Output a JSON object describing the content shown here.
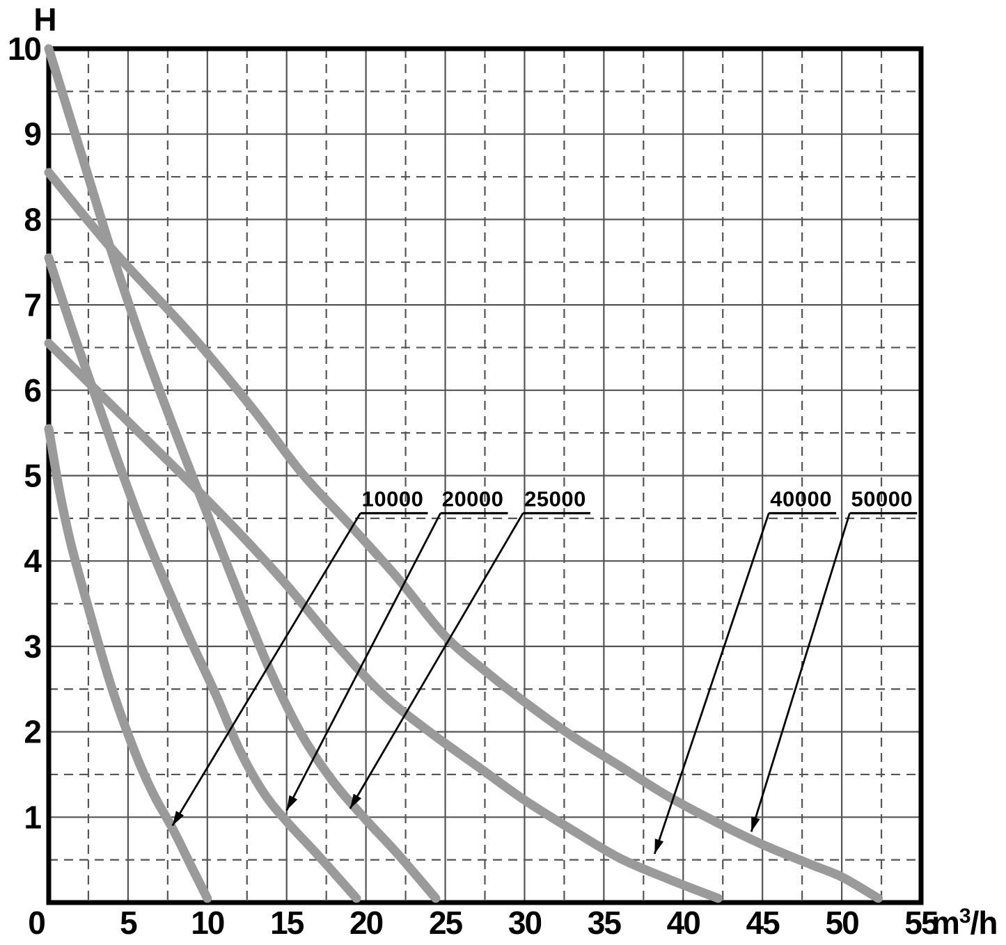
{
  "chart_data": {
    "type": "line",
    "title": "",
    "legend_position": "inline-labels-with-leader-arrows",
    "grid": "solid major, dashed minor",
    "y_axis": {
      "label": "H",
      "range": [
        0,
        10
      ],
      "ticks": [
        10,
        9,
        8,
        7,
        6,
        5,
        4,
        3,
        2,
        1
      ],
      "major_step": 1,
      "minor_step": 0.5
    },
    "x_axis": {
      "unit": "m³/h",
      "range": [
        0,
        55
      ],
      "ticks": [
        0,
        5,
        10,
        15,
        20,
        25,
        30,
        35,
        40,
        45,
        50,
        55
      ],
      "major_step": 5,
      "minor_step": 2.5
    },
    "series": [
      {
        "name": "10000",
        "max_head_m": 5.5,
        "max_flow_m3h": 10,
        "points": [
          [
            0,
            5.55
          ],
          [
            0.7,
            4.8
          ],
          [
            1.4,
            4.2
          ],
          [
            2.5,
            3.45
          ],
          [
            4,
            2.5
          ],
          [
            5.5,
            1.73
          ],
          [
            6.6,
            1.27
          ],
          [
            7.8,
            0.87
          ],
          [
            9,
            0.42
          ],
          [
            10,
            0.05
          ]
        ],
        "label_anchor_q": 19.65,
        "arrow_tip": [
          7.8,
          0.9
        ]
      },
      {
        "name": "20000",
        "max_head_m": 7.5,
        "max_flow_m3h": 19.4,
        "points": [
          [
            0,
            7.55
          ],
          [
            1.5,
            6.7
          ],
          [
            3,
            5.9
          ],
          [
            4.5,
            5.1
          ],
          [
            6,
            4.35
          ],
          [
            7.5,
            3.68
          ],
          [
            9,
            3.05
          ],
          [
            10.5,
            2.45
          ],
          [
            12,
            1.8
          ],
          [
            13.5,
            1.3
          ],
          [
            15,
            0.95
          ],
          [
            17,
            0.55
          ],
          [
            19.4,
            0.05
          ]
        ],
        "label_anchor_q": 24.7,
        "arrow_tip": [
          15.0,
          1.08
        ]
      },
      {
        "name": "25000",
        "max_head_m": 10,
        "max_flow_m3h": 24.4,
        "points": [
          [
            0,
            10
          ],
          [
            2,
            8.8
          ],
          [
            4,
            7.6
          ],
          [
            6,
            6.5
          ],
          [
            8,
            5.5
          ],
          [
            10,
            4.55
          ],
          [
            12,
            3.6
          ],
          [
            14,
            2.7
          ],
          [
            16,
            1.95
          ],
          [
            18,
            1.4
          ],
          [
            20,
            0.97
          ],
          [
            22,
            0.57
          ],
          [
            24.4,
            0.05
          ]
        ],
        "label_anchor_q": 29.9,
        "arrow_tip": [
          19.0,
          1.1
        ]
      },
      {
        "name": "40000",
        "max_head_m": 6.5,
        "max_flow_m3h": 42.2,
        "points": [
          [
            0,
            6.55
          ],
          [
            3,
            6.0
          ],
          [
            6,
            5.45
          ],
          [
            9,
            4.9
          ],
          [
            12,
            4.33
          ],
          [
            15,
            3.72
          ],
          [
            18,
            3.05
          ],
          [
            21,
            2.45
          ],
          [
            24,
            2.0
          ],
          [
            27,
            1.6
          ],
          [
            30,
            1.2
          ],
          [
            33,
            0.85
          ],
          [
            36,
            0.52
          ],
          [
            39,
            0.28
          ],
          [
            42.2,
            0.05
          ]
        ],
        "label_anchor_q": 45.4,
        "arrow_tip": [
          38.2,
          0.57
        ]
      },
      {
        "name": "50000",
        "max_head_m": 8.5,
        "max_flow_m3h": 52.3,
        "points": [
          [
            0,
            8.55
          ],
          [
            4,
            7.65
          ],
          [
            8,
            6.85
          ],
          [
            10,
            6.43
          ],
          [
            13,
            5.75
          ],
          [
            16,
            5.02
          ],
          [
            19,
            4.42
          ],
          [
            22,
            3.8
          ],
          [
            25,
            3.12
          ],
          [
            27.8,
            2.67
          ],
          [
            30,
            2.35
          ],
          [
            33,
            1.95
          ],
          [
            36,
            1.6
          ],
          [
            39,
            1.25
          ],
          [
            42,
            0.95
          ],
          [
            45,
            0.68
          ],
          [
            48,
            0.45
          ],
          [
            50,
            0.3
          ],
          [
            52.3,
            0.05
          ]
        ],
        "label_anchor_q": 50.5,
        "arrow_tip": [
          44.3,
          0.83
        ]
      }
    ],
    "annotation_row": {
      "underline_h": 4.56,
      "baseline_h": 4.64,
      "underline_len_q": 4.25
    },
    "colors": {
      "curve": "#9a9a9a",
      "grid": "#545454",
      "axis": "#000000",
      "text": "#000000",
      "background": "#ffffff"
    }
  }
}
